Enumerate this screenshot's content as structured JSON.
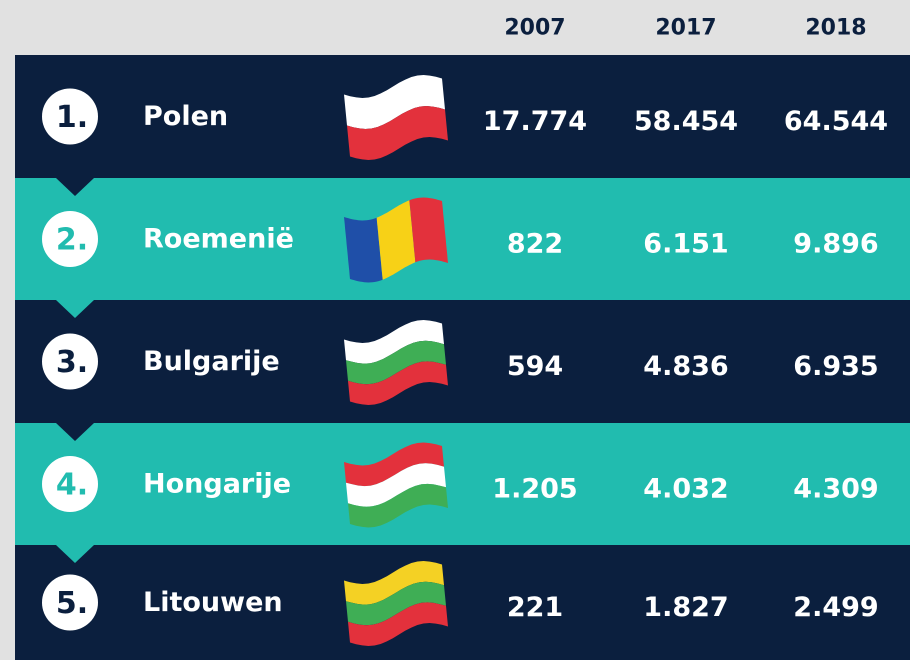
{
  "table": {
    "header": [
      "2007",
      "2017",
      "2018"
    ],
    "rows": [
      [
        "1.",
        "Polen",
        "17.774",
        "58.454",
        "64.544"
      ],
      [
        "2.",
        "Roemenië",
        "822",
        "6.151",
        "9.896"
      ],
      [
        "3.",
        "Bulgarije",
        "594",
        "4.836",
        "6.935"
      ],
      [
        "4.",
        "Hongarije",
        "1.205",
        "4.032",
        "4.309"
      ],
      [
        "5.",
        "Litouwen",
        "221",
        "1.827",
        "2.499"
      ]
    ]
  }
}
